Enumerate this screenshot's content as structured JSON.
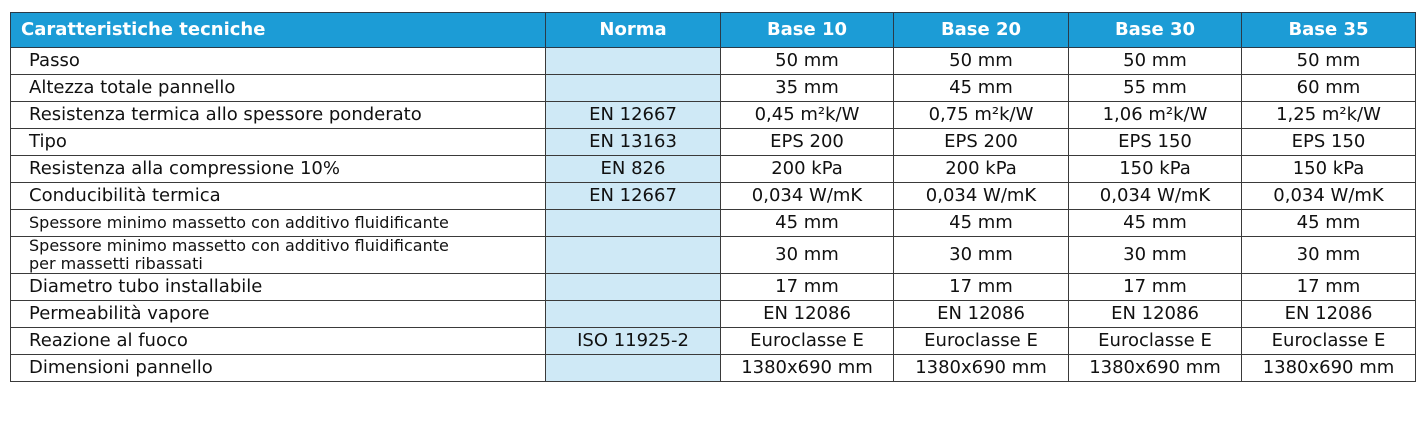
{
  "table": {
    "headers": [
      "Caratteristiche tecniche",
      "Norma",
      "Base 10",
      "Base 20",
      "Base 30",
      "Base 35"
    ],
    "rows": [
      [
        "Passo",
        null,
        "50 mm",
        "50 mm",
        "50 mm",
        "50 mm"
      ],
      [
        "Altezza totale pannello",
        null,
        "35 mm",
        "45 mm",
        "55 mm",
        "60 mm"
      ],
      [
        "Resistenza termica allo spessore ponderato",
        "EN 12667",
        "0,45 m²k/W",
        "0,75 m²k/W",
        "1,06 m²k/W",
        "1,25 m²k/W"
      ],
      [
        "Tipo",
        "EN 13163",
        "EPS 200",
        "EPS 200",
        "EPS 150",
        "EPS 150"
      ],
      [
        "Resistenza alla compressione 10%",
        "EN 826",
        "200 kPa",
        "200 kPa",
        "150 kPa",
        "150 kPa"
      ],
      [
        "Conducibilità termica",
        "EN 12667",
        "0,034 W/mK",
        "0,034 W/mK",
        "0,034 W/mK",
        "0,034 W/mK"
      ],
      [
        "Spessore minimo massetto con additivo fluidificante",
        null,
        "45 mm",
        "45 mm",
        "45 mm",
        "45 mm"
      ],
      [
        "Spessore minimo massetto con additivo fluidificante\nper massetti ribassati",
        null,
        "30 mm",
        "30 mm",
        "30 mm",
        "30 mm"
      ],
      [
        "Diametro tubo installabile",
        null,
        "17 mm",
        "17 mm",
        "17 mm",
        "17 mm"
      ],
      [
        "Permeabilità vapore",
        null,
        "EN 12086",
        "EN 12086",
        "EN 12086",
        "EN 12086"
      ],
      [
        "Reazione al fuoco",
        "ISO 11925-2",
        "Euroclasse E",
        "Euroclasse E",
        "Euroclasse E",
        "Euroclasse E"
      ],
      [
        "Dimensioni pannello",
        null,
        "1380x690 mm",
        "1380x690 mm",
        "1380x690 mm",
        "1380x690 mm"
      ]
    ]
  }
}
